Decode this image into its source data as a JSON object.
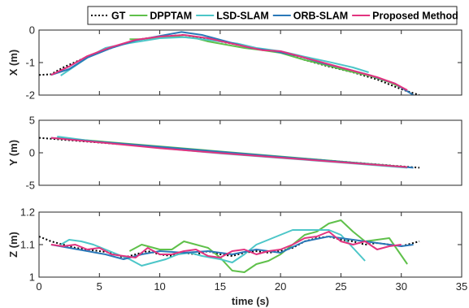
{
  "chart_data": {
    "type": "line",
    "xlabel": "time (s)",
    "xlim": [
      0,
      35
    ],
    "xticks": [
      0,
      5,
      10,
      15,
      20,
      25,
      30,
      35
    ],
    "legend": {
      "placement": "top",
      "entries": [
        {
          "name": "GT",
          "color": "#000000",
          "style": "dotted"
        },
        {
          "name": "DPPTAM",
          "color": "#5fc04a",
          "style": "solid"
        },
        {
          "name": "LSD-SLAM",
          "color": "#4cc6c8",
          "style": "solid"
        },
        {
          "name": "ORB-SLAM",
          "color": "#2a78b8",
          "style": "solid"
        },
        {
          "name": "Proposed Method",
          "color": "#e2337f",
          "style": "solid"
        }
      ]
    },
    "panels": [
      {
        "ylabel": "X (m)",
        "ylim": [
          -2,
          0
        ],
        "yticks": [
          0,
          -1,
          -2
        ],
        "series": [
          {
            "name": "GT",
            "x": [
              0,
              1,
              2,
              4,
              6,
              8,
              10,
              12,
              14,
              16,
              18,
              20,
              22,
              24,
              26,
              28,
              30,
              31.5
            ],
            "y": [
              -1.38,
              -1.36,
              -1.15,
              -0.82,
              -0.55,
              -0.3,
              -0.2,
              -0.15,
              -0.28,
              -0.42,
              -0.56,
              -0.68,
              -0.92,
              -1.12,
              -1.3,
              -1.52,
              -1.82,
              -2.0
            ]
          },
          {
            "name": "DPPTAM",
            "x": [
              7.5,
              8.5,
              10,
              11.5,
              13,
              14,
              15.5,
              17,
              18.5,
              20,
              22,
              24,
              25.5,
              27.5,
              29,
              30.5
            ],
            "y": [
              -0.28,
              -0.28,
              -0.22,
              -0.2,
              -0.25,
              -0.35,
              -0.45,
              -0.55,
              -0.62,
              -0.7,
              -0.92,
              -1.1,
              -1.25,
              -1.42,
              -1.6,
              -1.85
            ]
          },
          {
            "name": "LSD-SLAM",
            "x": [
              1.8,
              2.8,
              4,
              5.5,
              7.5,
              10,
              12,
              13.5,
              15,
              16.5,
              18,
              20,
              22,
              24,
              26,
              27.3
            ],
            "y": [
              -1.4,
              -1.15,
              -0.85,
              -0.55,
              -0.4,
              -0.25,
              -0.22,
              -0.28,
              -0.35,
              -0.42,
              -0.55,
              -0.65,
              -0.82,
              -0.98,
              -1.15,
              -1.3
            ]
          },
          {
            "name": "ORB-SLAM",
            "x": [
              1,
              2.5,
              4,
              6,
              8,
              10,
              11.8,
              13.5,
              15.5,
              17.5,
              19.5,
              21.5,
              23.5,
              25.5,
              27.5,
              29.5,
              31
            ],
            "y": [
              -1.38,
              -1.2,
              -0.85,
              -0.55,
              -0.32,
              -0.18,
              -0.06,
              -0.15,
              -0.35,
              -0.55,
              -0.65,
              -0.8,
              -1.02,
              -1.2,
              -1.4,
              -1.65,
              -2.0
            ]
          },
          {
            "name": "Proposed Method",
            "x": [
              1,
              2.5,
              4,
              6,
              8,
              10,
              12,
              14,
              15.5,
              17,
              18.5,
              20,
              22,
              24,
              26,
              28,
              29.5,
              30.5
            ],
            "y": [
              -1.38,
              -1.12,
              -0.8,
              -0.52,
              -0.3,
              -0.2,
              -0.15,
              -0.25,
              -0.38,
              -0.5,
              -0.62,
              -0.65,
              -0.85,
              -1.05,
              -1.25,
              -1.45,
              -1.65,
              -1.85
            ]
          }
        ]
      },
      {
        "ylabel": "Y (m)",
        "ylim": [
          -5,
          5
        ],
        "yticks": [
          5,
          0,
          -5
        ],
        "series": [
          {
            "name": "GT",
            "x": [
              0,
              31.5
            ],
            "y": [
              2.3,
              -2.3
            ]
          },
          {
            "name": "DPPTAM",
            "x": [
              1.5,
              30.5
            ],
            "y": [
              2.3,
              -2.2
            ]
          },
          {
            "name": "LSD-SLAM",
            "x": [
              1.5,
              5,
              10,
              15,
              20,
              25,
              30.5
            ],
            "y": [
              2.5,
              1.65,
              0.75,
              -0.1,
              -0.8,
              -1.5,
              -2.3
            ]
          },
          {
            "name": "ORB-SLAM",
            "x": [
              1,
              31
            ],
            "y": [
              2.3,
              -2.3
            ]
          },
          {
            "name": "Proposed Method",
            "x": [
              1,
              5,
              10,
              15,
              20,
              25,
              30.5
            ],
            "y": [
              2.3,
              1.6,
              0.7,
              -0.05,
              -0.75,
              -1.45,
              -2.2
            ]
          }
        ]
      },
      {
        "ylabel": "Z (m)",
        "ylim": [
          1,
          1.2
        ],
        "yticks": [
          1.2,
          1.1,
          1
        ],
        "series": [
          {
            "name": "GT",
            "x": [
              0,
              1,
              2,
              3,
              4,
              5,
              6,
              7,
              8,
              9,
              10,
              11,
              12,
              13,
              14,
              15,
              16,
              17,
              18,
              19,
              20,
              21,
              22,
              23,
              24,
              25,
              26,
              27,
              28,
              29,
              30,
              31,
              31.5
            ],
            "y": [
              1.125,
              1.11,
              1.1,
              1.09,
              1.085,
              1.08,
              1.075,
              1.06,
              1.07,
              1.08,
              1.07,
              1.065,
              1.075,
              1.07,
              1.08,
              1.07,
              1.065,
              1.075,
              1.08,
              1.075,
              1.08,
              1.09,
              1.11,
              1.12,
              1.125,
              1.115,
              1.11,
              1.1,
              1.105,
              1.1,
              1.095,
              1.105,
              1.11
            ]
          },
          {
            "name": "DPPTAM",
            "x": [
              7.5,
              8.5,
              10,
              11,
              12,
              13,
              14,
              15,
              16,
              17,
              18,
              19,
              20,
              21,
              22,
              23,
              24,
              25,
              26,
              27,
              28,
              29,
              30.5
            ],
            "y": [
              1.08,
              1.1,
              1.085,
              1.085,
              1.11,
              1.1,
              1.09,
              1.06,
              1.02,
              1.015,
              1.04,
              1.05,
              1.07,
              1.1,
              1.13,
              1.14,
              1.165,
              1.175,
              1.14,
              1.11,
              1.115,
              1.12,
              1.04
            ]
          },
          {
            "name": "LSD-SLAM",
            "x": [
              1.8,
              2.5,
              3.5,
              4.5,
              5.5,
              6.5,
              7.5,
              8.5,
              9.5,
              10.5,
              11.5,
              12.5,
              13.5,
              15,
              16,
              17,
              18,
              19,
              20,
              21,
              22,
              23,
              24,
              25,
              26,
              27
            ],
            "y": [
              1.1,
              1.115,
              1.11,
              1.1,
              1.085,
              1.07,
              1.055,
              1.035,
              1.045,
              1.055,
              1.07,
              1.075,
              1.065,
              1.055,
              1.045,
              1.07,
              1.1,
              1.115,
              1.13,
              1.145,
              1.145,
              1.145,
              1.145,
              1.13,
              1.09,
              1.05
            ]
          },
          {
            "name": "ORB-SLAM",
            "x": [
              1,
              2.5,
              4,
              5.5,
              7,
              8.5,
              10,
              12,
              14,
              16,
              18,
              20,
              22,
              24,
              26,
              28,
              30,
              31
            ],
            "y": [
              1.1,
              1.09,
              1.08,
              1.07,
              1.055,
              1.07,
              1.08,
              1.075,
              1.08,
              1.07,
              1.085,
              1.075,
              1.11,
              1.125,
              1.115,
              1.105,
              1.095,
              1.1
            ]
          },
          {
            "name": "Proposed Method",
            "x": [
              1,
              2,
              3,
              4,
              5,
              6,
              7,
              8,
              9,
              10,
              11,
              12,
              13,
              14,
              15,
              16,
              17,
              18,
              19,
              20,
              21,
              22,
              23,
              24,
              25,
              26,
              27,
              28,
              29,
              30
            ],
            "y": [
              1.1,
              1.095,
              1.1,
              1.085,
              1.09,
              1.07,
              1.065,
              1.06,
              1.09,
              1.07,
              1.07,
              1.08,
              1.085,
              1.065,
              1.06,
              1.08,
              1.085,
              1.07,
              1.08,
              1.085,
              1.1,
              1.12,
              1.125,
              1.14,
              1.11,
              1.1,
              1.11,
              1.085,
              1.095,
              1.1
            ]
          }
        ]
      }
    ]
  }
}
